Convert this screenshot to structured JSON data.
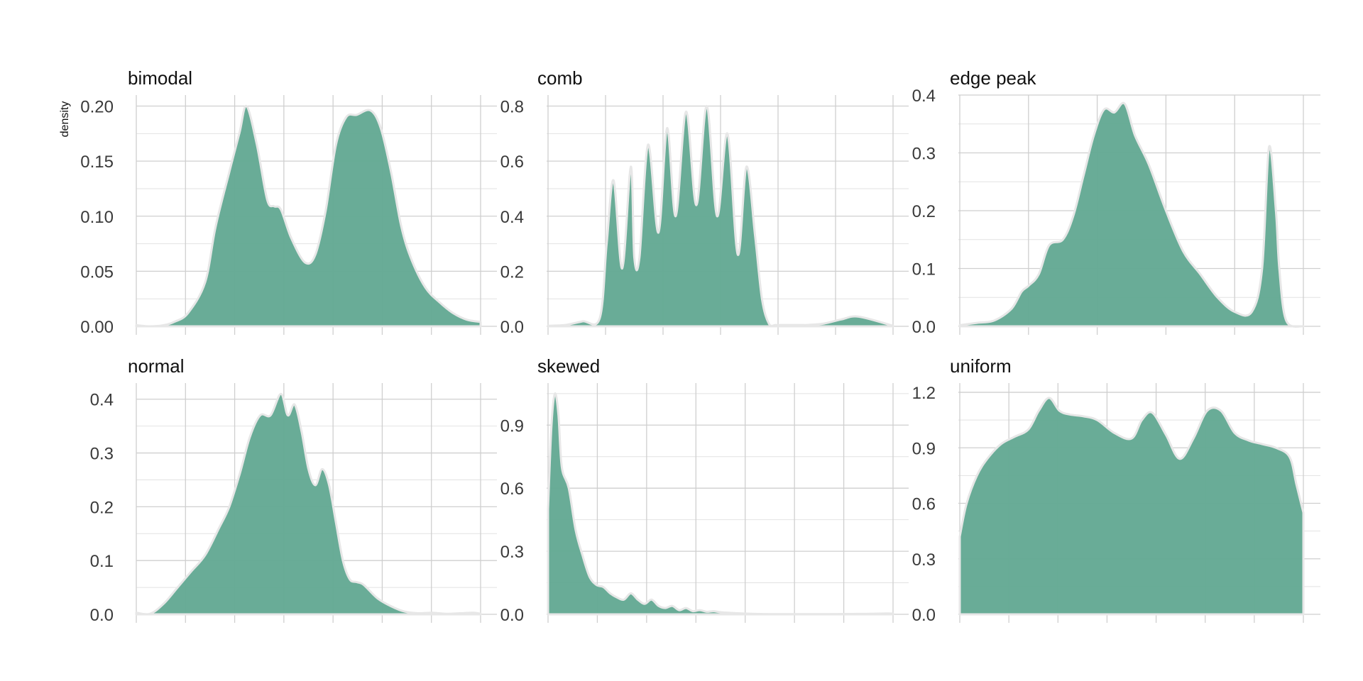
{
  "colors": {
    "fill": "#64a994",
    "outline": "#e7e7e7",
    "grid": "#cfcfcf"
  },
  "chart_data": {
    "type": "area",
    "layout": "facet-grid-2x3",
    "ylabel": "density",
    "xlabel": "",
    "grid": true,
    "x_tick_labels_shown": false,
    "panels": [
      {
        "title": "bimodal",
        "ylim": [
          0,
          0.21
        ],
        "yticks": [
          0,
          0.05,
          0.1,
          0.15,
          0.2
        ],
        "yticklabels": [
          "0.00",
          "0.05",
          "0.10",
          "0.15",
          "0.20"
        ],
        "x_gridlines": 8,
        "x_range": [
          0,
          1
        ],
        "x": [
          0,
          0.04,
          0.08,
          0.11,
          0.15,
          0.2,
          0.23,
          0.27,
          0.3,
          0.32,
          0.35,
          0.38,
          0.4,
          0.42,
          0.45,
          0.49,
          0.52,
          0.55,
          0.58,
          0.61,
          0.64,
          0.68,
          0.71,
          0.74,
          0.77,
          0.8,
          0.84,
          0.88,
          0.92,
          0.96,
          1
        ],
        "y": [
          0.001,
          0.0,
          0.001,
          0.004,
          0.012,
          0.04,
          0.09,
          0.14,
          0.176,
          0.2,
          0.165,
          0.115,
          0.109,
          0.106,
          0.08,
          0.058,
          0.065,
          0.105,
          0.165,
          0.19,
          0.192,
          0.196,
          0.18,
          0.14,
          0.09,
          0.06,
          0.035,
          0.022,
          0.012,
          0.006,
          0.004
        ]
      },
      {
        "title": "comb",
        "ylim": [
          0,
          0.84
        ],
        "yticks": [
          0,
          0.2,
          0.4,
          0.6,
          0.8
        ],
        "yticklabels": [
          "0.0",
          "0.2",
          "0.4",
          "0.6",
          "0.8"
        ],
        "x_gridlines": 7,
        "x_range": [
          0,
          1
        ],
        "x": [
          0,
          0.05,
          0.1,
          0.15,
          0.17,
          0.19,
          0.215,
          0.24,
          0.25,
          0.265,
          0.29,
          0.32,
          0.345,
          0.37,
          0.4,
          0.43,
          0.46,
          0.49,
          0.52,
          0.55,
          0.575,
          0.6,
          0.62,
          0.64,
          0.66,
          0.68,
          0.7,
          0.72,
          0.73,
          0.74,
          0.75,
          0.8,
          0.85,
          0.9,
          1
        ],
        "y": [
          0.002,
          0.005,
          0.018,
          0.03,
          0.3,
          0.53,
          0.21,
          0.58,
          0.25,
          0.25,
          0.66,
          0.34,
          0.72,
          0.4,
          0.78,
          0.44,
          0.8,
          0.4,
          0.7,
          0.26,
          0.58,
          0.33,
          0.1,
          0.01,
          0.005,
          0.005,
          0.005,
          0.005,
          0.005,
          0.005,
          0.005,
          0.01,
          0.025,
          0.035,
          0.002
        ]
      },
      {
        "title": "edge peak",
        "ylim": [
          0,
          0.4
        ],
        "yticks": [
          0,
          0.1,
          0.2,
          0.3,
          0.4
        ],
        "yticklabels": [
          "0.0",
          "0.1",
          "0.2",
          "0.3",
          "0.4"
        ],
        "x_gridlines": 6,
        "x_range": [
          0,
          1
        ],
        "x": [
          0,
          0.05,
          0.1,
          0.15,
          0.18,
          0.2,
          0.23,
          0.26,
          0.3,
          0.33,
          0.36,
          0.39,
          0.42,
          0.45,
          0.48,
          0.51,
          0.55,
          0.6,
          0.65,
          0.7,
          0.75,
          0.8,
          0.85,
          0.88,
          0.9,
          0.92,
          0.93,
          0.95,
          1
        ],
        "y": [
          0.002,
          0.006,
          0.01,
          0.03,
          0.06,
          0.07,
          0.09,
          0.14,
          0.15,
          0.19,
          0.26,
          0.33,
          0.375,
          0.37,
          0.385,
          0.33,
          0.28,
          0.2,
          0.13,
          0.09,
          0.05,
          0.025,
          0.025,
          0.1,
          0.31,
          0.2,
          0.1,
          0.01,
          0.0
        ]
      },
      {
        "title": "normal",
        "ylim": [
          0,
          0.43
        ],
        "yticks": [
          0,
          0.1,
          0.2,
          0.3,
          0.4
        ],
        "yticklabels": [
          "0.0",
          "0.1",
          "0.2",
          "0.3",
          "0.4"
        ],
        "x_gridlines": 8,
        "x_range": [
          0,
          1
        ],
        "x": [
          0,
          0.04,
          0.08,
          0.12,
          0.16,
          0.2,
          0.24,
          0.27,
          0.3,
          0.33,
          0.36,
          0.39,
          0.42,
          0.44,
          0.46,
          0.48,
          0.5,
          0.52,
          0.54,
          0.56,
          0.58,
          0.6,
          0.62,
          0.64,
          0.66,
          0.7,
          0.74,
          0.78,
          0.82,
          0.86,
          0.9,
          0.94,
          0.98,
          1
        ],
        "y": [
          0.003,
          0.001,
          0.02,
          0.05,
          0.08,
          0.11,
          0.16,
          0.2,
          0.26,
          0.33,
          0.37,
          0.37,
          0.41,
          0.37,
          0.39,
          0.34,
          0.27,
          0.24,
          0.27,
          0.24,
          0.17,
          0.1,
          0.065,
          0.06,
          0.055,
          0.03,
          0.015,
          0.005,
          0.002,
          0.003,
          0.001,
          0.002,
          0.003,
          0.001
        ]
      },
      {
        "title": "skewed",
        "ylim": [
          0,
          1.1
        ],
        "yticks": [
          0,
          0.3,
          0.6,
          0.9
        ],
        "yticklabels": [
          "0.0",
          "0.3",
          "0.6",
          "0.9"
        ],
        "x_gridlines": 8,
        "x_range": [
          0,
          1
        ],
        "x": [
          0,
          0.01,
          0.02,
          0.03,
          0.04,
          0.06,
          0.08,
          0.1,
          0.12,
          0.14,
          0.16,
          0.18,
          0.2,
          0.22,
          0.24,
          0.26,
          0.28,
          0.3,
          0.32,
          0.34,
          0.36,
          0.38,
          0.4,
          0.42,
          0.44,
          0.46,
          0.48,
          0.5,
          0.55,
          0.6,
          0.65,
          0.7,
          0.8,
          0.9,
          0.98,
          1
        ],
        "y": [
          0.5,
          0.9,
          1.05,
          0.95,
          0.7,
          0.6,
          0.4,
          0.28,
          0.18,
          0.14,
          0.13,
          0.1,
          0.08,
          0.07,
          0.1,
          0.07,
          0.05,
          0.07,
          0.04,
          0.03,
          0.04,
          0.02,
          0.03,
          0.015,
          0.02,
          0.012,
          0.015,
          0.01,
          0.005,
          0.002,
          0.001,
          0.001,
          0.001,
          0.002,
          0.004,
          0.003
        ]
      },
      {
        "title": "uniform",
        "ylim": [
          0,
          1.25
        ],
        "yticks": [
          0,
          0.3,
          0.6,
          0.9,
          1.2
        ],
        "yticklabels": [
          "0.0",
          "0.3",
          "0.6",
          "0.9",
          "1.2"
        ],
        "x_gridlines": 8,
        "x_range": [
          0,
          1
        ],
        "x": [
          0,
          0.02,
          0.05,
          0.08,
          0.12,
          0.16,
          0.2,
          0.23,
          0.26,
          0.29,
          0.32,
          0.36,
          0.4,
          0.45,
          0.5,
          0.53,
          0.56,
          0.6,
          0.64,
          0.68,
          0.72,
          0.76,
          0.8,
          0.84,
          0.88,
          0.92,
          0.96,
          0.98,
          1
        ],
        "y": [
          0.42,
          0.6,
          0.75,
          0.84,
          0.92,
          0.96,
          1.0,
          1.1,
          1.17,
          1.1,
          1.08,
          1.07,
          1.05,
          0.98,
          0.95,
          1.05,
          1.09,
          0.97,
          0.84,
          0.95,
          1.1,
          1.1,
          0.98,
          0.94,
          0.92,
          0.9,
          0.85,
          0.7,
          0.55
        ]
      }
    ]
  }
}
